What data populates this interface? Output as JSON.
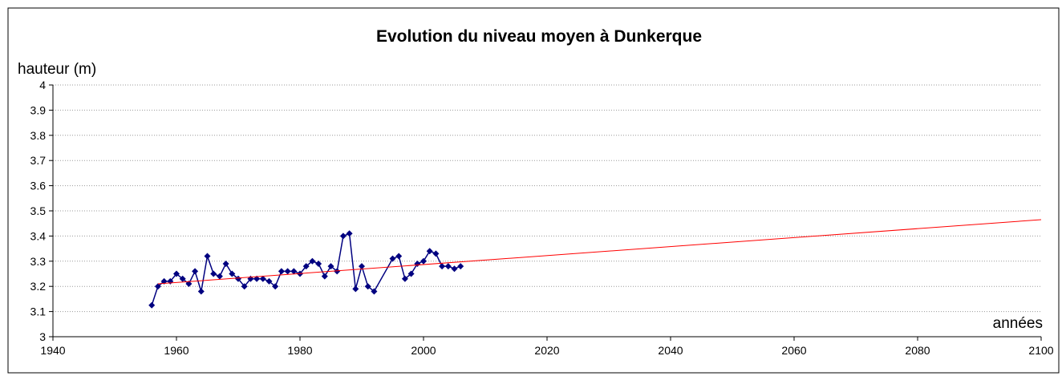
{
  "chart_data": {
    "type": "line",
    "title": "Evolution du niveau moyen à Dunkerque",
    "y_label": "hauteur (m)",
    "x_label": "années",
    "xlim": [
      1940,
      2100
    ],
    "xticks": [
      1940,
      1960,
      1980,
      2000,
      2020,
      2040,
      2060,
      2080,
      2100
    ],
    "ylim": [
      3,
      4
    ],
    "yticks": [
      3,
      3.1,
      3.2,
      3.3,
      3.4,
      3.5,
      3.6,
      3.7,
      3.8,
      3.9,
      4
    ],
    "grid": true,
    "series": [
      {
        "color": "#000080",
        "markers": true,
        "x": [
          1956,
          1957,
          1958,
          1959,
          1960,
          1961,
          1962,
          1963,
          1964,
          1965,
          1966,
          1967,
          1968,
          1969,
          1970,
          1971,
          1972,
          1973,
          1974,
          1975,
          1976,
          1977,
          1978,
          1979,
          1980,
          1981,
          1982,
          1983,
          1984,
          1985,
          1986,
          1987,
          1988,
          1989,
          1990,
          1991,
          1992,
          1995,
          1996,
          1997,
          1998,
          1999,
          2000,
          2001,
          2002,
          2003,
          2004,
          2005,
          2006
        ],
        "values": [
          3.125,
          3.2,
          3.22,
          3.22,
          3.25,
          3.23,
          3.21,
          3.26,
          3.18,
          3.32,
          3.25,
          3.24,
          3.29,
          3.25,
          3.23,
          3.2,
          3.23,
          3.23,
          3.23,
          3.22,
          3.2,
          3.26,
          3.26,
          3.26,
          3.25,
          3.28,
          3.3,
          3.29,
          3.24,
          3.28,
          3.26,
          3.4,
          3.41,
          3.19,
          3.28,
          3.2,
          3.18,
          3.31,
          3.32,
          3.23,
          3.25,
          3.29,
          3.3,
          3.34,
          3.33,
          3.28,
          3.28,
          3.27,
          3.28
        ]
      },
      {
        "color": "#ff0000",
        "markers": false,
        "x": [
          1957,
          2100
        ],
        "values": [
          3.21,
          3.465
        ]
      }
    ]
  }
}
